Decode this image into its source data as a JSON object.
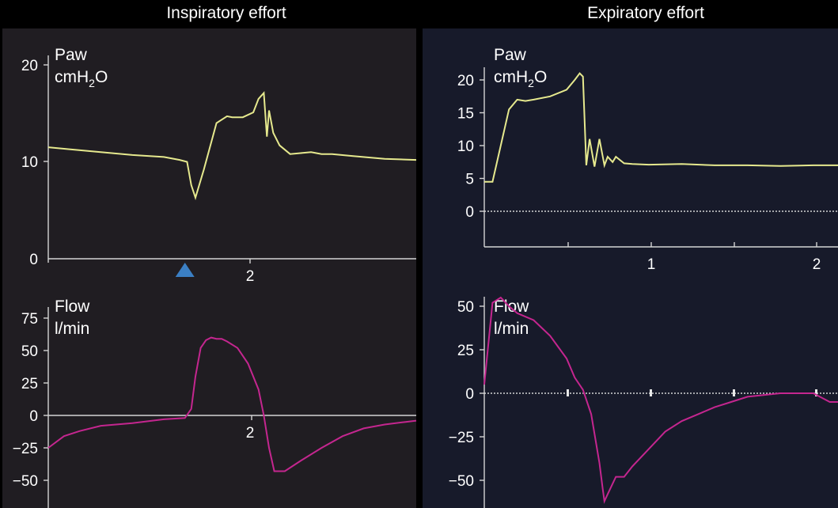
{
  "colors": {
    "background": "#000000",
    "left_panel": "#201d22",
    "right_panel": "#171a2a",
    "pressure_line": "#e6e98e",
    "flow_line": "#c4268f",
    "marker": "#3b7fc4"
  },
  "headers": {
    "left": "Inspiratory effort",
    "right": "Expiratory effort"
  },
  "chart_data": [
    {
      "id": "insp-paw",
      "type": "line",
      "label": "Paw",
      "unit_main": "cmH",
      "unit_sub": "2",
      "unit_end": "O",
      "ylim": [
        0,
        20
      ],
      "yticks": [
        "20",
        "10",
        "0"
      ],
      "xlim": [
        0,
        3.5
      ],
      "xtick": "2",
      "marker_x": 1.3,
      "series": [
        {
          "x": [
            0,
            0.2,
            0.5,
            0.8,
            1.1,
            1.25,
            1.32,
            1.36,
            1.4,
            1.48,
            1.6,
            1.7,
            1.75,
            1.85,
            1.95,
            2.0,
            2.05,
            2.08,
            2.1,
            2.14,
            2.2,
            2.3,
            2.4,
            2.5,
            2.6,
            2.7,
            2.9,
            3.2,
            3.5
          ],
          "y": [
            11.5,
            11.3,
            11,
            10.7,
            10.5,
            10.2,
            10,
            7.6,
            6.3,
            9.2,
            14,
            14.7,
            14.6,
            14.6,
            15.1,
            16.5,
            17.1,
            12.6,
            15.3,
            13,
            11.7,
            10.8,
            10.9,
            11.0,
            10.8,
            10.8,
            10.6,
            10.3,
            10.2
          ]
        }
      ]
    },
    {
      "id": "insp-flow",
      "type": "line",
      "label": "Flow",
      "unit": "l/min",
      "ylim": [
        -60,
        75
      ],
      "yticks": [
        "75",
        "50",
        "25",
        "0",
        "−25",
        "−50"
      ],
      "xlim": [
        0,
        3.5
      ],
      "xtick": "2",
      "series": [
        {
          "x": [
            0,
            0.15,
            0.3,
            0.5,
            0.8,
            1.1,
            1.3,
            1.36,
            1.4,
            1.45,
            1.5,
            1.55,
            1.6,
            1.65,
            1.7,
            1.8,
            1.9,
            2.0,
            2.05,
            2.1,
            2.15,
            2.25,
            2.4,
            2.6,
            2.8,
            3.0,
            3.2,
            3.4,
            3.5
          ],
          "y": [
            -25,
            -16,
            -12,
            -8,
            -6,
            -3,
            -2,
            5,
            30,
            52,
            58,
            60,
            59,
            59,
            57,
            52,
            40,
            20,
            0,
            -25,
            -43,
            -43,
            -35,
            -25,
            -16,
            -10,
            -7,
            -5,
            -4
          ]
        }
      ]
    },
    {
      "id": "exp-paw",
      "type": "line",
      "label": "Paw",
      "unit_main": "cmH",
      "unit_sub": "2",
      "unit_end": "O",
      "ylim": [
        0,
        20
      ],
      "yticks": [
        "20",
        "15",
        "10",
        "5",
        "0"
      ],
      "xlim": [
        0,
        2.15
      ],
      "xticks": [
        "1",
        "2"
      ],
      "series": [
        {
          "x": [
            0,
            0.05,
            0.1,
            0.15,
            0.2,
            0.25,
            0.3,
            0.4,
            0.5,
            0.55,
            0.58,
            0.6,
            0.62,
            0.64,
            0.67,
            0.7,
            0.73,
            0.75,
            0.78,
            0.8,
            0.85,
            0.9,
            1.0,
            1.2,
            1.4,
            1.6,
            1.8,
            2.0,
            2.15
          ],
          "y": [
            4.5,
            4.5,
            10,
            15.5,
            17,
            16.8,
            17,
            17.5,
            18.5,
            20,
            21,
            20.5,
            7,
            11,
            6.8,
            11,
            7,
            8.3,
            7.5,
            8.3,
            7.3,
            7.2,
            7.1,
            7.2,
            7,
            7,
            6.9,
            7,
            7
          ]
        }
      ]
    },
    {
      "id": "exp-flow",
      "type": "line",
      "label": "Flow",
      "unit": "l/min",
      "ylim": [
        -62,
        60
      ],
      "yticks": [
        "50",
        "25",
        "0",
        "−25",
        "−50"
      ],
      "xlim": [
        0,
        2.15
      ],
      "series": [
        {
          "x": [
            0,
            0.05,
            0.1,
            0.15,
            0.2,
            0.3,
            0.4,
            0.5,
            0.55,
            0.6,
            0.65,
            0.7,
            0.72,
            0.73,
            0.75,
            0.8,
            0.85,
            0.9,
            1.0,
            1.1,
            1.2,
            1.3,
            1.4,
            1.5,
            1.6,
            1.8,
            2.0,
            2.1,
            2.15
          ],
          "y": [
            5,
            52,
            55,
            50,
            46,
            42,
            33,
            20,
            9,
            2,
            -12,
            -40,
            -55,
            -62,
            -58,
            -48,
            -48,
            -42,
            -32,
            -22,
            -16,
            -12,
            -8,
            -5,
            -2,
            0,
            0,
            -5,
            -5
          ]
        }
      ]
    }
  ]
}
